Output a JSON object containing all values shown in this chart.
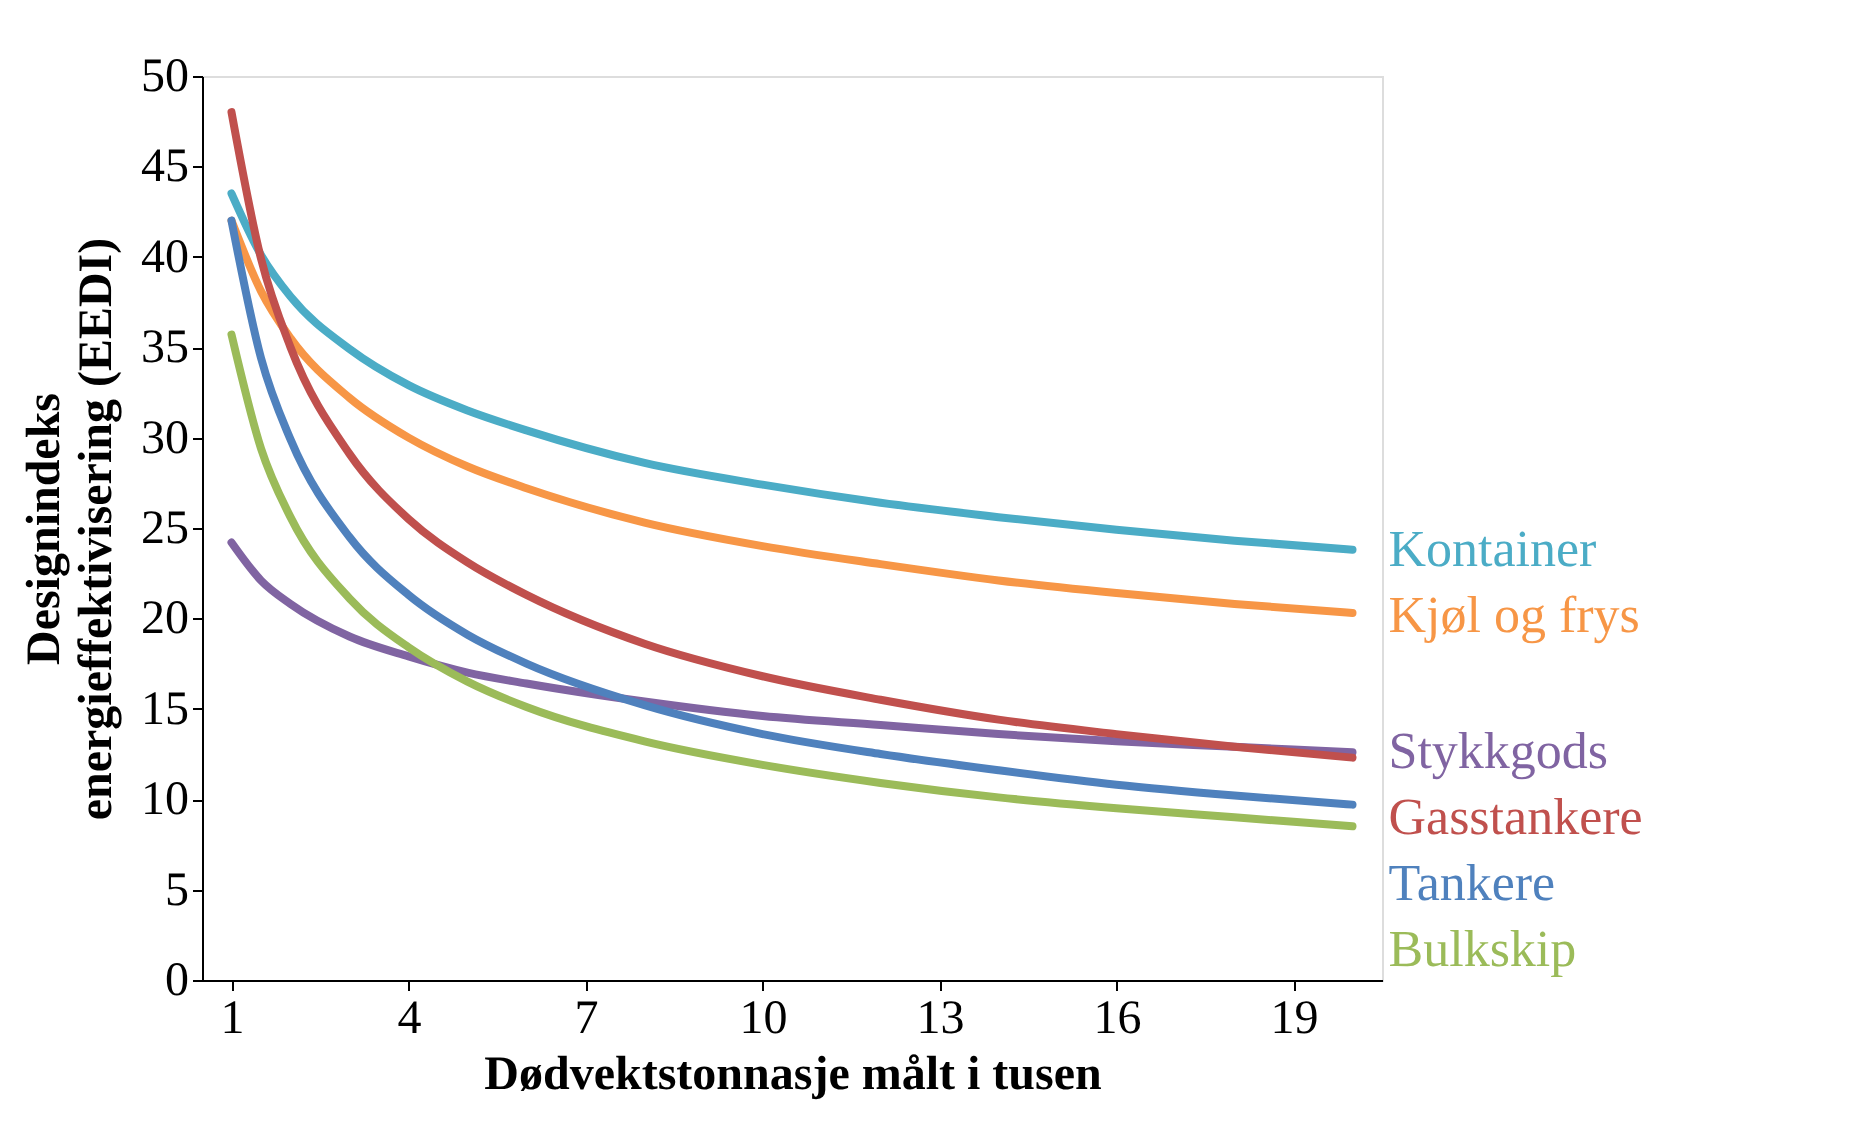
{
  "chart_data": {
    "type": "line",
    "xlabel": "Dødvektstonnasje målt i tusen",
    "ylabel": "Designindeks\nenergieffektivisering (EEDI)",
    "x": [
      1,
      1.5,
      2,
      3,
      4,
      5,
      6,
      8,
      10,
      12,
      14,
      16,
      18,
      20
    ],
    "xlim": [
      0.5,
      20.5
    ],
    "xticks": [
      1,
      4,
      7,
      10,
      13,
      16,
      19
    ],
    "ylim": [
      0,
      50
    ],
    "yticks": [
      0,
      5,
      10,
      15,
      20,
      25,
      30,
      35,
      40,
      45,
      50
    ],
    "grid": false,
    "legend": false,
    "marker": "none",
    "line_style": "solid",
    "series": [
      {
        "name": "Kontainer",
        "color": "#4bacc6",
        "values": [
          43.5,
          40.1,
          37.8,
          34.9,
          32.9,
          31.5,
          30.4,
          28.6,
          27.4,
          26.4,
          25.6,
          24.9,
          24.3,
          23.8
        ]
      },
      {
        "name": "Kjøl og frys",
        "color": "#f79646",
        "values": [
          42,
          38.1,
          35.5,
          32.2,
          30.0,
          28.4,
          27.2,
          25.3,
          24.0,
          23.0,
          22.1,
          21.4,
          20.8,
          20.3
        ]
      },
      {
        "name": "Stykkgods",
        "color": "#8064a2",
        "values": [
          24.2,
          22.1,
          20.8,
          19.0,
          17.9,
          17.0,
          16.4,
          15.4,
          14.6,
          14.1,
          13.6,
          13.2,
          12.9,
          12.6
        ]
      },
      {
        "name": "Gasstankere",
        "color": "#c0504d",
        "values": [
          48,
          39.9,
          35.0,
          29.1,
          25.5,
          23.1,
          21.3,
          18.6,
          16.8,
          15.5,
          14.4,
          13.6,
          12.9,
          12.3
        ]
      },
      {
        "name": "Tankere",
        "color": "#4f81bd",
        "values": [
          42,
          34.4,
          29.9,
          24.5,
          21.3,
          19.1,
          17.5,
          15.2,
          13.6,
          12.5,
          11.6,
          10.8,
          10.2,
          9.7
        ]
      },
      {
        "name": "Bulkskip",
        "color": "#9bbb59",
        "values": [
          35.7,
          29.4,
          25.6,
          21.1,
          18.4,
          16.5,
          15.1,
          13.2,
          11.9,
          10.9,
          10.1,
          9.5,
          9.0,
          8.5
        ]
      }
    ]
  }
}
